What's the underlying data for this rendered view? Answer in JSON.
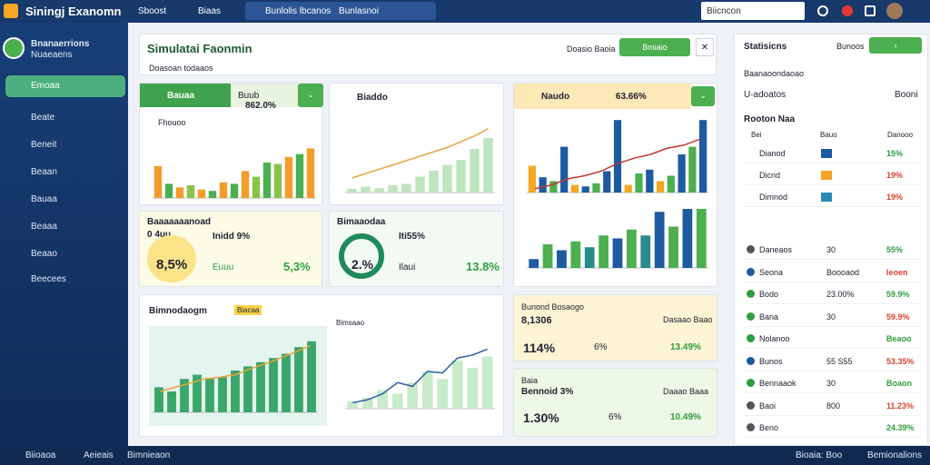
{
  "topbar": {
    "app_title": "Siningj Exanomn",
    "nav": [
      "Sboost",
      "Biaas"
    ],
    "search_placeholder": "Bunlolis lbcanos",
    "search_hint": "Bunlasnoi",
    "search2": "Biicncon"
  },
  "sidebar": {
    "user": [
      "Bnanaerrions",
      "Nuaeaens"
    ],
    "items": [
      "Emoaa",
      "Beate",
      "Beneit",
      "Beaan",
      "Bauaa",
      "Beaaa",
      "Beaao",
      "Beecees"
    ]
  },
  "header": {
    "title": "Simulatai Faonmin",
    "subtitle": "Doasoan todaaos",
    "filter": "Doasio Baoia",
    "button": "Bmiaio"
  },
  "cards": [
    {
      "label": "Bauaa",
      "chip": "Buub",
      "value": "862.0%",
      "chart_title": "Fhouoo",
      "chart": {
        "values": [
          45,
          20,
          15,
          18,
          12,
          10,
          22,
          20,
          38,
          30,
          50,
          48,
          58,
          62,
          70
        ],
        "colors": [
          "#f39c2a",
          "#4caf50",
          "#f39c2a",
          "#8bc34a",
          "#f39c2a",
          "#4caf50",
          "#f39c2a",
          "#4caf50",
          "#f39c2a",
          "#8bc34a",
          "#4caf50",
          "#8bc34a",
          "#f39c2a",
          "#4caf50",
          "#f39c2a"
        ]
      }
    },
    {
      "label": "Biaddo",
      "chart": {
        "values": [
          5,
          8,
          6,
          10,
          12,
          22,
          30,
          38,
          45,
          60,
          75
        ],
        "color": "#bfe5bf",
        "line": [
          20,
          26,
          32,
          38,
          44,
          50,
          56,
          62,
          70,
          78,
          88
        ],
        "line_color": "#e8a33a"
      }
    },
    {
      "label": "Naudo",
      "value": "63.66%",
      "chart": {
        "values": [
          35,
          20,
          15,
          60,
          10,
          8,
          12,
          28,
          95,
          10,
          25,
          30,
          15,
          22,
          50,
          60,
          95
        ],
        "colors": [
          "#f5a623",
          "#1e5aa0",
          "#4caf50",
          "#1e5aa0",
          "#f5a623",
          "#1e5aa0",
          "#4caf50",
          "#1e5aa0",
          "#1e5aa0",
          "#f5a623",
          "#4caf50",
          "#1e5aa0",
          "#f5a623",
          "#4caf50",
          "#1e5aa0",
          "#4caf50",
          "#1e5aa0"
        ],
        "line": [
          5,
          10,
          18,
          22,
          28,
          38,
          45,
          50,
          58,
          62,
          70
        ],
        "line_color": "#c0392b"
      },
      "chart2": {
        "values": [
          15,
          40,
          30,
          45,
          35,
          55,
          50,
          65,
          55,
          95,
          70,
          100,
          100
        ],
        "colors": [
          "#1e5aa0",
          "#4caf50",
          "#1e5aa0",
          "#4caf50",
          "#2a8a8a",
          "#4caf50",
          "#1e5aa0",
          "#4caf50",
          "#2a8a8a",
          "#1e5aa0",
          "#4caf50",
          "#1e5aa0",
          "#4caf50"
        ]
      }
    },
    {
      "label": "Baaaaaaanoad",
      "sub": "0 4uu",
      "stat1": "Inidd 9%",
      "big": "8,5%",
      "stat2": "Euuu",
      "value": "5,3%"
    },
    {
      "label": "Bimaaodaa",
      "stat1": "Iti55%",
      "big": "2.%",
      "stat2": "Ilaui",
      "value": "13.8%"
    },
    {
      "label": "Bimnodaogm",
      "chip": "Biacaa",
      "chart_title": "Bimsaao",
      "chart": {
        "values": [
          30,
          25,
          40,
          45,
          40,
          42,
          50,
          55,
          60,
          65,
          70,
          78,
          85
        ],
        "color": "#3aa66a",
        "line": [
          25,
          30,
          35,
          40,
          42,
          45,
          52,
          58,
          65,
          72,
          80
        ],
        "line_color": "#e8a33a"
      },
      "chart2": {
        "values": [
          10,
          15,
          25,
          20,
          35,
          50,
          40,
          65,
          55,
          70
        ],
        "color": "#c8ebc8",
        "line": [
          8,
          12,
          20,
          35,
          30,
          50,
          48,
          68,
          72,
          80
        ],
        "line_color": "#2a5fa8"
      }
    },
    {
      "label": "Bunond Bosaogo",
      "sub": "8,1306",
      "tag": "Dasaao Baao",
      "big": "114%",
      "stat1": "6%",
      "value": "13.49%"
    },
    {
      "label": "Baia",
      "sub": "Bennoid 3%",
      "tag": "Daaao Baaa",
      "big": "1.30%",
      "stat1": "6%",
      "value": "10.49%"
    }
  ],
  "right_panel": {
    "title": "Statisicns",
    "button": "Bunoos",
    "filter": "Baanaoondaoao",
    "row_label": "U-adoatos",
    "row_value": "Booni",
    "section": "Rooton Naa",
    "columns": [
      "Bei",
      "Bauo",
      "Danooo"
    ],
    "top_rows": [
      [
        "Dianod",
        "15%"
      ],
      [
        "Dicnd",
        "19%"
      ],
      [
        "Dimnod",
        "19%"
      ]
    ],
    "rows": [
      [
        "Daneaos",
        "30",
        "55%"
      ],
      [
        "Seona",
        "Boooaod",
        "Ieoen"
      ],
      [
        "Bodo",
        "23.00%",
        "59.9%"
      ],
      [
        "Bana",
        "30",
        "59.9%"
      ],
      [
        "Nolanoo",
        "",
        "Beaoo"
      ],
      [
        "Bunos",
        "55 S55",
        "53.35%"
      ],
      [
        "Bennaaok",
        "30",
        "Boaon"
      ],
      [
        "Baoi",
        "800",
        "11.23%"
      ],
      [
        "Beno",
        "",
        "24.39%"
      ]
    ]
  },
  "footer": {
    "left": [
      "Biioaoa",
      "Aeieais",
      "Bimnieaon"
    ],
    "right": [
      "Bioaia: Boo",
      "Bemionalions"
    ]
  }
}
